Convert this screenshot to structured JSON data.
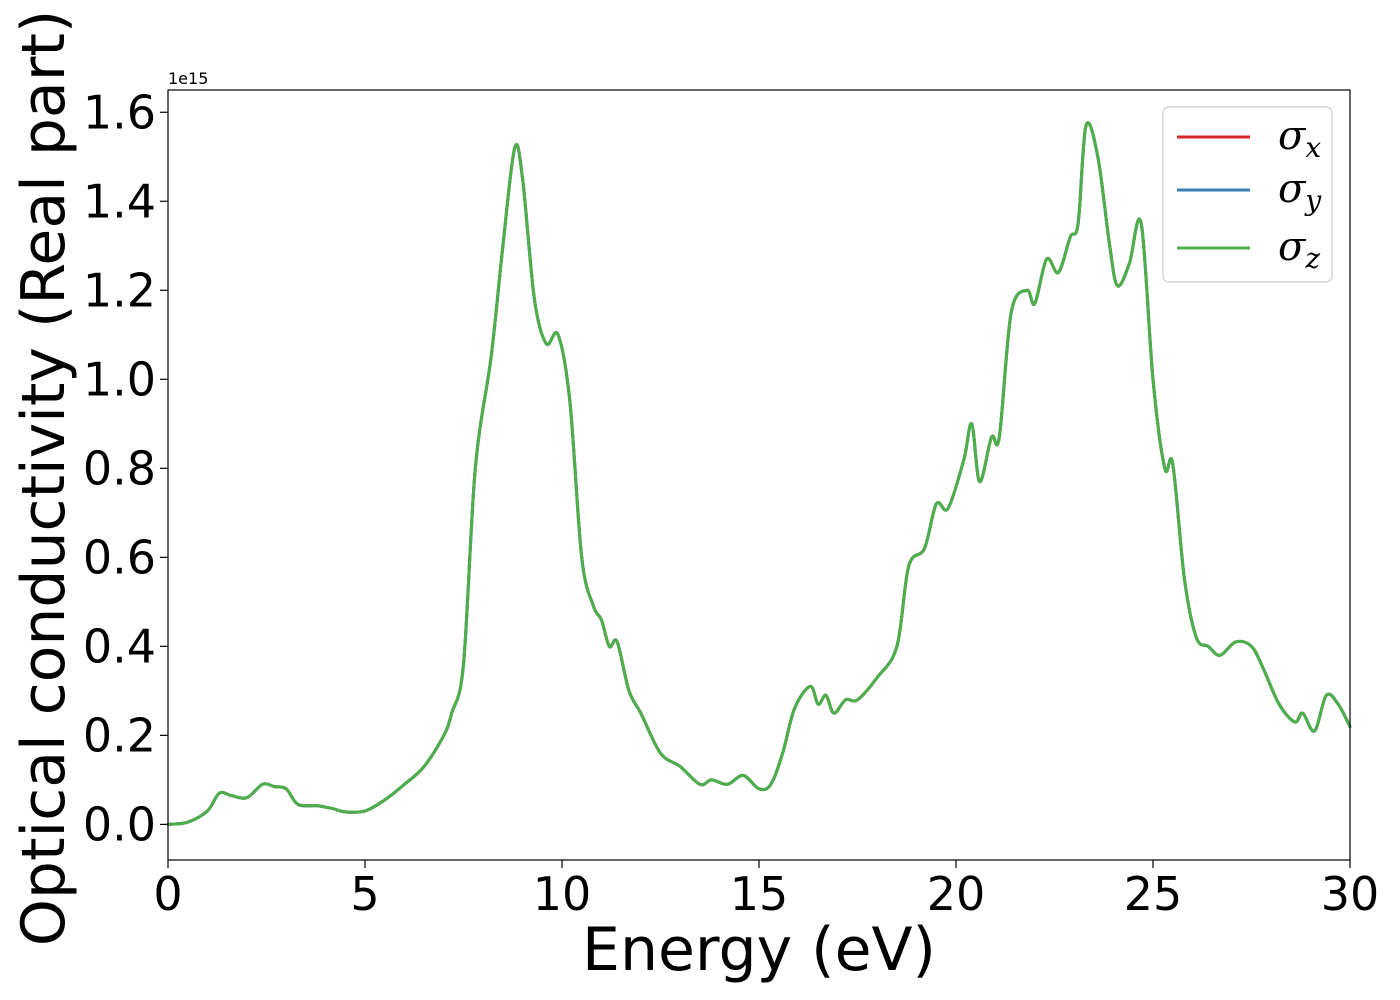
{
  "chart_data": {
    "type": "line",
    "title": "",
    "xlabel": "Energy (eV)",
    "ylabel": "Optical conductivity (Real part)",
    "y_offset_label": "1e15",
    "xlim": [
      0,
      30
    ],
    "ylim": [
      -0.08,
      1.65
    ],
    "x_ticks": [
      0,
      5,
      10,
      15,
      20,
      25,
      30
    ],
    "x_tick_labels": [
      "0",
      "5",
      "10",
      "15",
      "20",
      "25",
      "30"
    ],
    "y_ticks": [
      0.0,
      0.2,
      0.4,
      0.6,
      0.8,
      1.0,
      1.2,
      1.4,
      1.6
    ],
    "y_tick_labels": [
      "0.0",
      "0.2",
      "0.4",
      "0.6",
      "0.8",
      "1.0",
      "1.2",
      "1.4",
      "1.6"
    ],
    "grid": false,
    "legend_position": "top-right",
    "x": [
      0,
      0.5,
      1.0,
      1.3,
      1.6,
      2.0,
      2.4,
      2.7,
      3.0,
      3.3,
      3.8,
      4.2,
      4.5,
      5.0,
      5.5,
      6.0,
      6.5,
      7.0,
      7.2,
      7.5,
      7.8,
      8.2,
      8.5,
      8.8,
      9.0,
      9.3,
      9.6,
      9.9,
      10.2,
      10.5,
      10.8,
      11.0,
      11.2,
      11.4,
      11.7,
      12.0,
      12.5,
      13.0,
      13.5,
      13.8,
      14.2,
      14.6,
      15.0,
      15.3,
      15.6,
      15.9,
      16.3,
      16.5,
      16.7,
      16.9,
      17.2,
      17.5,
      18.0,
      18.5,
      18.8,
      19.2,
      19.5,
      19.8,
      20.2,
      20.4,
      20.6,
      20.9,
      21.1,
      21.4,
      21.8,
      22.0,
      22.3,
      22.6,
      22.9,
      23.1,
      23.3,
      23.6,
      23.9,
      24.1,
      24.4,
      24.7,
      25.0,
      25.3,
      25.5,
      25.8,
      26.1,
      26.4,
      26.7,
      27.1,
      27.5,
      27.8,
      28.2,
      28.6,
      28.8,
      29.1,
      29.4,
      29.7,
      30.0
    ],
    "series": [
      {
        "name": "σx",
        "color": "#d62728",
        "values": [
          0.0,
          0.005,
          0.03,
          0.07,
          0.065,
          0.06,
          0.09,
          0.085,
          0.08,
          0.045,
          0.042,
          0.035,
          0.028,
          0.03,
          0.055,
          0.09,
          0.13,
          0.2,
          0.25,
          0.36,
          0.8,
          1.05,
          1.3,
          1.52,
          1.45,
          1.18,
          1.08,
          1.1,
          0.95,
          0.6,
          0.49,
          0.46,
          0.4,
          0.41,
          0.3,
          0.25,
          0.16,
          0.13,
          0.09,
          0.1,
          0.09,
          0.11,
          0.08,
          0.09,
          0.16,
          0.26,
          0.31,
          0.27,
          0.29,
          0.25,
          0.28,
          0.28,
          0.33,
          0.4,
          0.58,
          0.62,
          0.72,
          0.71,
          0.82,
          0.9,
          0.77,
          0.87,
          0.87,
          1.15,
          1.2,
          1.17,
          1.27,
          1.24,
          1.32,
          1.35,
          1.57,
          1.5,
          1.3,
          1.21,
          1.26,
          1.35,
          1.0,
          0.8,
          0.81,
          0.55,
          0.42,
          0.4,
          0.38,
          0.41,
          0.4,
          0.35,
          0.27,
          0.23,
          0.25,
          0.21,
          0.29,
          0.27,
          0.22
        ]
      },
      {
        "name": "σy",
        "color": "#3a7fb8",
        "values": [
          0.0,
          0.005,
          0.03,
          0.07,
          0.065,
          0.06,
          0.09,
          0.085,
          0.08,
          0.045,
          0.042,
          0.035,
          0.028,
          0.03,
          0.055,
          0.09,
          0.13,
          0.2,
          0.25,
          0.36,
          0.8,
          1.05,
          1.3,
          1.52,
          1.45,
          1.18,
          1.08,
          1.1,
          0.95,
          0.6,
          0.49,
          0.46,
          0.4,
          0.41,
          0.3,
          0.25,
          0.16,
          0.13,
          0.09,
          0.1,
          0.09,
          0.11,
          0.08,
          0.09,
          0.16,
          0.26,
          0.31,
          0.27,
          0.29,
          0.25,
          0.28,
          0.28,
          0.33,
          0.4,
          0.58,
          0.62,
          0.72,
          0.71,
          0.82,
          0.9,
          0.77,
          0.87,
          0.87,
          1.15,
          1.2,
          1.17,
          1.27,
          1.24,
          1.32,
          1.35,
          1.57,
          1.5,
          1.3,
          1.21,
          1.26,
          1.35,
          1.0,
          0.8,
          0.81,
          0.55,
          0.42,
          0.4,
          0.38,
          0.41,
          0.4,
          0.35,
          0.27,
          0.23,
          0.25,
          0.21,
          0.29,
          0.27,
          0.22
        ]
      },
      {
        "name": "σz",
        "color": "#4daf4a",
        "values": [
          0.0,
          0.005,
          0.03,
          0.07,
          0.065,
          0.06,
          0.09,
          0.085,
          0.08,
          0.045,
          0.042,
          0.035,
          0.028,
          0.03,
          0.055,
          0.09,
          0.13,
          0.2,
          0.25,
          0.36,
          0.8,
          1.05,
          1.3,
          1.52,
          1.45,
          1.18,
          1.08,
          1.1,
          0.95,
          0.6,
          0.49,
          0.46,
          0.4,
          0.41,
          0.3,
          0.25,
          0.16,
          0.13,
          0.09,
          0.1,
          0.09,
          0.11,
          0.08,
          0.09,
          0.16,
          0.26,
          0.31,
          0.27,
          0.29,
          0.25,
          0.28,
          0.28,
          0.33,
          0.4,
          0.58,
          0.62,
          0.72,
          0.71,
          0.82,
          0.9,
          0.77,
          0.87,
          0.87,
          1.15,
          1.2,
          1.17,
          1.27,
          1.24,
          1.32,
          1.35,
          1.57,
          1.5,
          1.3,
          1.21,
          1.26,
          1.35,
          1.0,
          0.8,
          0.81,
          0.55,
          0.42,
          0.4,
          0.38,
          0.41,
          0.4,
          0.35,
          0.27,
          0.23,
          0.25,
          0.21,
          0.29,
          0.27,
          0.22
        ]
      }
    ],
    "legend": [
      {
        "symbol": "σ",
        "subscript": "x"
      },
      {
        "symbol": "σ",
        "subscript": "y"
      },
      {
        "symbol": "σ",
        "subscript": "z"
      }
    ]
  }
}
